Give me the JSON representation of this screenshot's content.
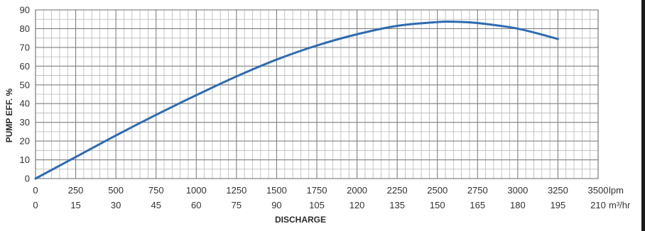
{
  "chart_data": {
    "type": "line",
    "ylabel": "PUMP EFF. %",
    "xlabel": "DISCHARGE",
    "y_ticks": [
      "0",
      "10",
      "20",
      "30",
      "40",
      "50",
      "60",
      "70",
      "80",
      "90"
    ],
    "ylim": [
      0,
      90
    ],
    "x_ticks_primary": [
      "0",
      "250",
      "500",
      "750",
      "1000",
      "1250",
      "1500",
      "1750",
      "2000",
      "2250",
      "2500",
      "2750",
      "3000",
      "3250",
      "3500"
    ],
    "x_unit_primary": "lpm",
    "x_ticks_secondary": [
      "0",
      "15",
      "30",
      "45",
      "60",
      "75",
      "90",
      "105",
      "120",
      "135",
      "150",
      "165",
      "180",
      "195",
      "210"
    ],
    "x_unit_secondary": "m³/hr",
    "xlim": [
      0,
      3500
    ],
    "grid": true,
    "series": [
      {
        "color": "#2e6bb0",
        "x": [
          0,
          250,
          500,
          750,
          1000,
          1250,
          1500,
          1750,
          2000,
          2250,
          2500,
          2600,
          2750,
          3000,
          3250
        ],
        "y": [
          0,
          11.5,
          23,
          34,
          44.5,
          54.5,
          63.5,
          71,
          77,
          81.5,
          83.5,
          83.7,
          83,
          80,
          74.5
        ]
      }
    ]
  }
}
